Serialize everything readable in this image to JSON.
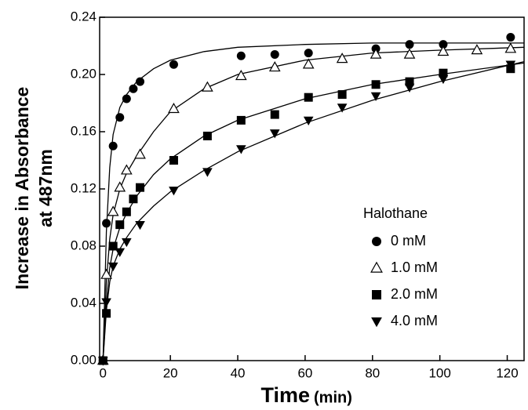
{
  "chart_data": {
    "type": "scatter",
    "y_label": "Increase in Absorbance",
    "y_label_2": "at 487nm",
    "x_label": "Time",
    "x_unit": "(min)",
    "legend_title": "Halothane",
    "legend_position": "lower right",
    "xlim": [
      -1,
      125
    ],
    "ylim": [
      0,
      0.24
    ],
    "xticks": [
      0,
      20,
      40,
      60,
      80,
      100,
      120
    ],
    "yticks": [
      {
        "value": 0,
        "label": "0.00"
      },
      {
        "value": 0.04,
        "label": "0.04"
      },
      {
        "value": 0.08,
        "label": "0.08"
      },
      {
        "value": 0.12,
        "label": "0.12"
      },
      {
        "value": 0.16,
        "label": "0.16"
      },
      {
        "value": 0.2,
        "label": "0.20"
      },
      {
        "value": 0.24,
        "label": "0.24"
      }
    ],
    "fit_x": [
      0,
      1,
      2,
      3,
      5,
      7,
      10,
      15,
      20,
      30,
      40,
      60,
      80,
      100,
      125
    ],
    "series": [
      {
        "name": "0 mM",
        "marker": "circle",
        "color": "#000000",
        "x": [
          0,
          1,
          3,
          5,
          7,
          9,
          11,
          21,
          41,
          51,
          61,
          81,
          91,
          101,
          121
        ],
        "values": [
          0,
          0.096,
          0.15,
          0.17,
          0.183,
          0.19,
          0.195,
          0.207,
          0.213,
          0.214,
          0.215,
          0.218,
          0.221,
          0.221,
          0.226
        ],
        "fit_values": [
          0,
          0.09,
          0.135,
          0.158,
          0.177,
          0.186,
          0.195,
          0.204,
          0.21,
          0.216,
          0.219,
          0.221,
          0.222,
          0.222,
          0.222
        ]
      },
      {
        "name": "1.0 mM",
        "marker": "triangle-open",
        "color": "#000000",
        "x": [
          0,
          1,
          3,
          5,
          7,
          11,
          21,
          31,
          41,
          51,
          61,
          71,
          81,
          91,
          101,
          111,
          121
        ],
        "values": [
          0,
          0.06,
          0.104,
          0.121,
          0.133,
          0.144,
          0.176,
          0.191,
          0.199,
          0.205,
          0.207,
          0.211,
          0.214,
          0.214,
          0.216,
          0.217,
          0.218
        ],
        "fit_values": [
          0,
          0.055,
          0.085,
          0.102,
          0.12,
          0.131,
          0.143,
          0.16,
          0.174,
          0.19,
          0.2,
          0.21,
          0.215,
          0.217,
          0.219
        ]
      },
      {
        "name": "2.0 mM",
        "marker": "square",
        "color": "#000000",
        "x": [
          0,
          1,
          3,
          5,
          7,
          9,
          11,
          21,
          31,
          41,
          51,
          61,
          71,
          81,
          91,
          101,
          121
        ],
        "values": [
          0,
          0.033,
          0.08,
          0.095,
          0.104,
          0.113,
          0.121,
          0.14,
          0.157,
          0.168,
          0.172,
          0.184,
          0.186,
          0.193,
          0.195,
          0.201,
          0.204
        ],
        "fit_values": [
          0,
          0.04,
          0.065,
          0.078,
          0.093,
          0.103,
          0.115,
          0.13,
          0.141,
          0.157,
          0.168,
          0.183,
          0.193,
          0.2,
          0.208
        ]
      },
      {
        "name": "4.0 mM",
        "marker": "triangle-down",
        "color": "#000000",
        "x": [
          0,
          1,
          3,
          5,
          7,
          11,
          21,
          31,
          41,
          51,
          61,
          71,
          81,
          91,
          101,
          121
        ],
        "values": [
          0,
          0.041,
          0.066,
          0.076,
          0.083,
          0.095,
          0.119,
          0.132,
          0.148,
          0.159,
          0.168,
          0.177,
          0.185,
          0.191,
          0.197,
          0.207
        ],
        "fit_values": [
          0,
          0.035,
          0.055,
          0.066,
          0.078,
          0.086,
          0.096,
          0.108,
          0.118,
          0.133,
          0.146,
          0.166,
          0.182,
          0.195,
          0.209
        ]
      }
    ]
  }
}
